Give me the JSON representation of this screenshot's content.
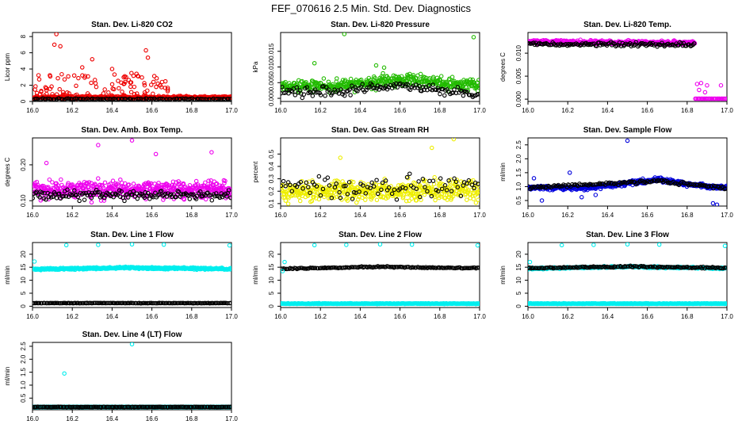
{
  "page": {
    "title": "FEF_070616  2.5 Min. Std. Dev. Diagnostics"
  },
  "chart_data": [
    {
      "type": "scatter",
      "title": "Stan. Dev. Li-820 CO2",
      "xlabel": "",
      "ylabel": "Licor ppm",
      "xlim": [
        16.0,
        17.0
      ],
      "ylim": [
        0,
        8.5
      ],
      "yticks": [
        0,
        2,
        4,
        6,
        8
      ],
      "ytick_labels": [
        "0",
        "2",
        "4",
        "6",
        "8"
      ],
      "xticks": [
        16.0,
        16.2,
        16.4,
        16.6,
        16.8,
        17.0
      ],
      "xtick_labels": [
        "16.0",
        "16.2",
        "16.4",
        "16.6",
        "16.8",
        "17.0"
      ],
      "series": [
        {
          "name": "primary",
          "color": "#ee0000",
          "seed": 11,
          "x": [
            16.0,
            17.0
          ],
          "base": [
            0.5,
            0.5
          ],
          "noise": 0.15,
          "n": 400,
          "extra": [
            [
              16.12,
              8.3
            ],
            [
              16.11,
              7.0
            ],
            [
              16.14,
              6.8
            ],
            [
              16.3,
              5.2
            ],
            [
              16.57,
              6.3
            ],
            [
              16.58,
              5.4
            ],
            [
              16.25,
              4.2
            ],
            [
              16.4,
              4.0
            ],
            [
              16.47,
              3.0
            ]
          ],
          "burst": {
            "x0": 16.0,
            "x1": 16.68,
            "low": 0.4,
            "high": 3.5,
            "n": 120
          }
        },
        {
          "name": "secondary",
          "color": "#000000",
          "seed": 12,
          "x": [
            16.0,
            17.0
          ],
          "base": [
            0.3,
            0.3
          ],
          "noise": 0.08,
          "n": 120
        }
      ]
    },
    {
      "type": "scatter",
      "title": "Stan. Dev. Li-820 Pressure",
      "xlabel": "",
      "ylabel": "kPa",
      "xlim": [
        16.0,
        17.0
      ],
      "ylim": [
        -0.001,
        0.021
      ],
      "yticks": [
        0.0,
        0.005,
        0.01,
        0.015
      ],
      "ytick_labels": [
        "0.000",
        "0.005",
        "0.010",
        "0.015"
      ],
      "xticks": [
        16.0,
        16.2,
        16.4,
        16.6,
        16.8,
        17.0
      ],
      "xtick_labels": [
        "16.0",
        "16.2",
        "16.4",
        "16.6",
        "16.8",
        "17.0"
      ],
      "series": [
        {
          "name": "primary",
          "color": "#22bb00",
          "seed": 21,
          "x": [
            16.0,
            16.3,
            16.6,
            16.8,
            17.0
          ],
          "base": [
            0.004,
            0.004,
            0.006,
            0.005,
            0.004
          ],
          "noise": 0.0018,
          "n": 420,
          "extra": [
            [
              16.32,
              0.0205
            ],
            [
              16.97,
              0.0195
            ],
            [
              16.17,
              0.0112
            ],
            [
              16.48,
              0.0105
            ],
            [
              16.52,
              0.0098
            ]
          ]
        },
        {
          "name": "secondary",
          "color": "#000000",
          "seed": 22,
          "x": [
            16.0,
            16.3,
            16.6,
            17.0
          ],
          "base": [
            0.002,
            0.0025,
            0.004,
            0.001
          ],
          "noise": 0.0015,
          "n": 140
        }
      ]
    },
    {
      "type": "scatter",
      "title": "Stan. Dev. Li-820 Temp.",
      "xlabel": "",
      "ylabel": "degrees C",
      "xlim": [
        16.0,
        17.0
      ],
      "ylim": [
        -0.0005,
        0.0145
      ],
      "yticks": [
        0.0,
        0.005,
        0.01
      ],
      "ytick_labels": [
        "0.000",
        "0.005",
        "0.010"
      ],
      "xticks": [
        16.0,
        16.2,
        16.4,
        16.6,
        16.8,
        17.0
      ],
      "xtick_labels": [
        "16.0",
        "16.2",
        "16.4",
        "16.6",
        "16.8",
        "17.0"
      ],
      "series": [
        {
          "name": "primary",
          "color": "#ee00ee",
          "seed": 31,
          "x": [
            16.0,
            16.84
          ],
          "base": [
            0.0125,
            0.0122
          ],
          "noise": 0.0004,
          "n": 380
        },
        {
          "name": "secondary",
          "color": "#000000",
          "seed": 32,
          "x": [
            16.0,
            16.84
          ],
          "base": [
            0.012,
            0.0118
          ],
          "noise": 0.0004,
          "n": 130
        },
        {
          "name": "primary",
          "color": "#ee00ee",
          "seed": 33,
          "x": [
            16.84,
            17.0
          ],
          "base": [
            0.0001,
            0.0001
          ],
          "noise": 0.0,
          "n": 30,
          "extra": [
            [
              16.85,
              0.0033
            ],
            [
              16.87,
              0.0035
            ],
            [
              16.9,
              0.003
            ],
            [
              16.86,
              0.002
            ],
            [
              16.97,
              0.003
            ],
            [
              16.89,
              0.0015
            ]
          ]
        }
      ]
    },
    {
      "type": "scatter",
      "title": "Stan. Dev. Amb. Box Temp.",
      "xlabel": "",
      "ylabel": "degrees C",
      "xlim": [
        16.0,
        17.0
      ],
      "ylim": [
        0.085,
        0.275
      ],
      "yticks": [
        0.1,
        0.2
      ],
      "ytick_labels": [
        "0.10",
        "0.20"
      ],
      "xticks": [
        16.0,
        16.2,
        16.4,
        16.6,
        16.8,
        17.0
      ],
      "xtick_labels": [
        "16.0",
        "16.2",
        "16.4",
        "16.6",
        "16.8",
        "17.0"
      ],
      "series": [
        {
          "name": "primary",
          "color": "#ee00ee",
          "seed": 41,
          "x": [
            16.0,
            17.0
          ],
          "base": [
            0.13,
            0.13
          ],
          "noise": 0.022,
          "n": 520,
          "extra": [
            [
              16.5,
              0.268
            ],
            [
              16.33,
              0.255
            ],
            [
              16.07,
              0.205
            ],
            [
              16.9,
              0.235
            ],
            [
              16.62,
              0.23
            ]
          ]
        },
        {
          "name": "secondary",
          "color": "#000000",
          "seed": 42,
          "x": [
            16.0,
            17.0
          ],
          "base": [
            0.115,
            0.115
          ],
          "noise": 0.012,
          "n": 150
        }
      ]
    },
    {
      "type": "scatter",
      "title": "Stan. Dev. Gas Stream RH",
      "xlabel": "",
      "ylabel": "percent",
      "xlim": [
        16.0,
        17.0
      ],
      "ylim": [
        0.08,
        0.63
      ],
      "yticks": [
        0.1,
        0.2,
        0.3,
        0.4,
        0.5
      ],
      "ytick_labels": [
        "0.1",
        "0.2",
        "0.3",
        "0.4",
        "0.5"
      ],
      "xticks": [
        16.0,
        16.2,
        16.4,
        16.6,
        16.8,
        17.0
      ],
      "xtick_labels": [
        "16.0",
        "16.2",
        "16.4",
        "16.6",
        "16.8",
        "17.0"
      ],
      "series": [
        {
          "name": "primary",
          "color": "#eeee00",
          "seed": 51,
          "x": [
            16.0,
            17.0
          ],
          "base": [
            0.2,
            0.2
          ],
          "noise": 0.075,
          "n": 480,
          "extra": [
            [
              16.87,
              0.62
            ],
            [
              16.76,
              0.55
            ],
            [
              16.3,
              0.47
            ]
          ]
        },
        {
          "name": "secondary",
          "color": "#000000",
          "seed": 52,
          "x": [
            16.0,
            17.0
          ],
          "base": [
            0.24,
            0.24
          ],
          "noise": 0.08,
          "n": 90
        }
      ]
    },
    {
      "type": "scatter",
      "title": "Stan. Dev. Sample Flow",
      "xlabel": "",
      "ylabel": "ml/min",
      "xlim": [
        16.0,
        17.0
      ],
      "ylim": [
        0.3,
        2.75
      ],
      "yticks": [
        0.5,
        1.0,
        1.5,
        2.0,
        2.5
      ],
      "ytick_labels": [
        "0.5",
        "1.0",
        "1.5",
        "2.0",
        "2.5"
      ],
      "xticks": [
        16.0,
        16.2,
        16.4,
        16.6,
        16.8,
        17.0
      ],
      "xtick_labels": [
        "16.0",
        "16.2",
        "16.4",
        "16.6",
        "16.8",
        "17.0"
      ],
      "series": [
        {
          "name": "primary",
          "color": "#0000dd",
          "seed": 61,
          "x": [
            16.0,
            16.3,
            16.65,
            16.85,
            17.0
          ],
          "base": [
            0.95,
            0.95,
            1.25,
            1.05,
            0.95
          ],
          "noise": 0.07,
          "n": 430,
          "extra": [
            [
              16.5,
              2.65
            ],
            [
              16.03,
              1.3
            ],
            [
              16.21,
              1.5
            ],
            [
              16.93,
              0.4
            ],
            [
              16.95,
              0.35
            ],
            [
              16.07,
              0.5
            ],
            [
              16.34,
              0.7
            ],
            [
              16.27,
              0.62
            ]
          ]
        },
        {
          "name": "secondary",
          "color": "#000000",
          "seed": 62,
          "x": [
            16.0,
            16.65,
            17.0
          ],
          "base": [
            0.97,
            1.2,
            0.95
          ],
          "noise": 0.05,
          "n": 140
        }
      ]
    },
    {
      "type": "scatter",
      "title": "Stan. Dev. Line 1 Flow",
      "xlabel": "",
      "ylabel": "ml/min",
      "xlim": [
        16.0,
        17.0
      ],
      "ylim": [
        -0.5,
        24.5
      ],
      "yticks": [
        0,
        5,
        10,
        15,
        20
      ],
      "ytick_labels": [
        "0",
        "5",
        "10",
        "15",
        "20"
      ],
      "xticks": [
        16.0,
        16.2,
        16.4,
        16.6,
        16.8,
        17.0
      ],
      "xtick_labels": [
        "16.0",
        "16.2",
        "16.4",
        "16.6",
        "16.8",
        "17.0"
      ],
      "series": [
        {
          "name": "primary",
          "color": "#00eeee",
          "seed": 71,
          "x": [
            16.0,
            16.5,
            17.0
          ],
          "base": [
            14.2,
            14.8,
            14.3
          ],
          "noise": 0.35,
          "n": 430,
          "extra": [
            [
              16.17,
              23.5
            ],
            [
              16.33,
              23.6
            ],
            [
              16.5,
              23.8
            ],
            [
              16.66,
              23.7
            ],
            [
              16.99,
              23.4
            ],
            [
              16.01,
              17.2
            ]
          ]
        },
        {
          "name": "secondary",
          "color": "#000000",
          "seed": 72,
          "x": [
            16.0,
            17.0
          ],
          "base": [
            1.2,
            1.2
          ],
          "noise": 0.08,
          "n": 150
        }
      ]
    },
    {
      "type": "scatter",
      "title": "Stan. Dev. Line 2 Flow",
      "xlabel": "",
      "ylabel": "ml/min",
      "xlim": [
        16.0,
        17.0
      ],
      "ylim": [
        -0.5,
        24.5
      ],
      "yticks": [
        0,
        5,
        10,
        15,
        20
      ],
      "ytick_labels": [
        "0",
        "5",
        "10",
        "15",
        "20"
      ],
      "xticks": [
        16.0,
        16.2,
        16.4,
        16.6,
        16.8,
        17.0
      ],
      "xtick_labels": [
        "16.0",
        "16.2",
        "16.4",
        "16.6",
        "16.8",
        "17.0"
      ],
      "series": [
        {
          "name": "secondary",
          "color": "#000000",
          "seed": 81,
          "x": [
            16.0,
            16.5,
            17.0
          ],
          "base": [
            14.4,
            15.2,
            14.6
          ],
          "noise": 0.25,
          "n": 150
        },
        {
          "name": "primary",
          "color": "#00eeee",
          "seed": 82,
          "x": [
            16.0,
            17.0
          ],
          "base": [
            1.0,
            1.0
          ],
          "noise": 0.12,
          "n": 430,
          "extra": [
            [
              16.17,
              23.5
            ],
            [
              16.33,
              23.6
            ],
            [
              16.5,
              23.8
            ],
            [
              16.66,
              23.7
            ],
            [
              16.99,
              23.4
            ],
            [
              16.01,
              13.5
            ],
            [
              16.02,
              17.0
            ]
          ]
        }
      ]
    },
    {
      "type": "scatter",
      "title": "Stan. Dev. Line 3 Flow",
      "xlabel": "",
      "ylabel": "ml/min",
      "xlim": [
        16.0,
        17.0
      ],
      "ylim": [
        -0.5,
        24.5
      ],
      "yticks": [
        0,
        5,
        10,
        15,
        20
      ],
      "ytick_labels": [
        "0",
        "5",
        "10",
        "15",
        "20"
      ],
      "xticks": [
        16.0,
        16.2,
        16.4,
        16.6,
        16.8,
        17.0
      ],
      "xtick_labels": [
        "16.0",
        "16.2",
        "16.4",
        "16.6",
        "16.8",
        "17.0"
      ],
      "series": [
        {
          "name": "primary",
          "color": "#00eeee",
          "seed": 91,
          "x": [
            16.0,
            16.5,
            17.0
          ],
          "base": [
            14.5,
            15.2,
            14.6
          ],
          "noise": 0.3,
          "n": 320,
          "extra": [
            [
              16.17,
              23.5
            ],
            [
              16.33,
              23.6
            ],
            [
              16.5,
              23.8
            ],
            [
              16.66,
              23.7
            ],
            [
              16.99,
              23.2
            ],
            [
              16.01,
              17.0
            ]
          ]
        },
        {
          "name": "secondary",
          "color": "#000000",
          "seed": 92,
          "x": [
            16.0,
            16.5,
            17.0
          ],
          "base": [
            14.6,
            15.3,
            14.7
          ],
          "noise": 0.25,
          "n": 150
        },
        {
          "name": "primary",
          "color": "#00eeee",
          "seed": 93,
          "x": [
            16.0,
            17.0
          ],
          "base": [
            1.0,
            1.0
          ],
          "noise": 0.12,
          "n": 430
        }
      ]
    },
    {
      "type": "scatter",
      "title": "Stan. Dev. Line 4 (LT) Flow",
      "xlabel": "",
      "ylabel": "ml/min",
      "xlim": [
        16.0,
        17.0
      ],
      "ylim": [
        0.05,
        2.65
      ],
      "yticks": [
        0.5,
        1.0,
        1.5,
        2.0,
        2.5
      ],
      "ytick_labels": [
        "0.5",
        "1.0",
        "1.5",
        "2.0",
        "2.5"
      ],
      "xticks": [
        16.0,
        16.2,
        16.4,
        16.6,
        16.8,
        17.0
      ],
      "xtick_labels": [
        "16.0",
        "16.2",
        "16.4",
        "16.6",
        "16.8",
        "17.0"
      ],
      "series": [
        {
          "name": "primary",
          "color": "#00eeee",
          "seed": 101,
          "x": [
            16.0,
            17.0
          ],
          "base": [
            0.16,
            0.16
          ],
          "noise": 0.006,
          "n": 420,
          "extra": [
            [
              16.16,
              1.45
            ],
            [
              16.5,
              2.58
            ]
          ]
        },
        {
          "name": "secondary",
          "color": "#000000",
          "seed": 102,
          "x": [
            16.0,
            17.0
          ],
          "base": [
            0.16,
            0.16
          ],
          "noise": 0.006,
          "n": 150
        }
      ]
    }
  ]
}
